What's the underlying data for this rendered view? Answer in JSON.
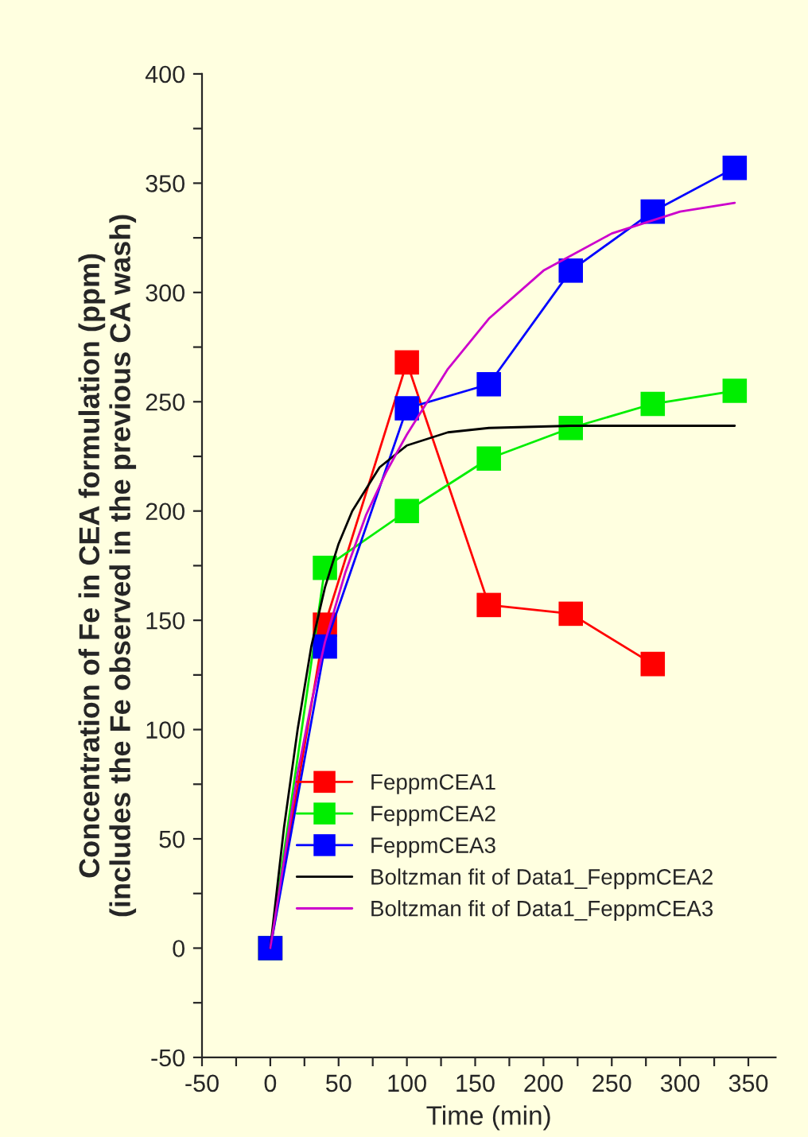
{
  "chart_data": {
    "type": "line",
    "xlabel": "Time (min)",
    "ylabel": "Concentration of Fe in CEA formulation (ppm)\n(includes the Fe observed in the previous CA wash)",
    "xlim": [
      -50,
      370
    ],
    "ylim": [
      -50,
      400
    ],
    "xticks": [
      -50,
      {
        "value": -25,
        "label": null
      },
      0,
      {
        "value": 25,
        "label": null
      },
      50,
      {
        "value": 75,
        "label": null
      },
      100,
      {
        "value": 125,
        "label": null
      },
      150,
      {
        "value": 175,
        "label": null
      },
      200,
      {
        "value": 225,
        "label": null
      },
      250,
      {
        "value": 275,
        "label": null
      },
      300,
      {
        "value": 325,
        "label": null
      },
      350
    ],
    "yticks": [
      -50,
      {
        "value": -25,
        "label": null
      },
      0,
      {
        "value": 25,
        "label": null
      },
      50,
      {
        "value": 75,
        "label": null
      },
      100,
      {
        "value": 125,
        "label": null
      },
      150,
      {
        "value": 175,
        "label": null
      },
      200,
      {
        "value": 225,
        "label": null
      },
      250,
      {
        "value": 275,
        "label": null
      },
      300,
      {
        "value": 325,
        "label": null
      },
      350,
      {
        "value": 375,
        "label": null
      },
      400
    ],
    "grid": false,
    "legend": "bottom",
    "series": [
      {
        "name": "FeppmCEA1",
        "color": "#ff0000",
        "marker": "square",
        "x": [
          0,
          40,
          100,
          160,
          220,
          280
        ],
        "values": [
          0,
          148,
          268,
          157,
          153,
          130
        ]
      },
      {
        "name": "FeppmCEA2",
        "color": "#00ee00",
        "marker": "square",
        "x": [
          0,
          40,
          100,
          160,
          220,
          280,
          340
        ],
        "values": [
          0,
          174,
          200,
          224,
          238,
          249,
          255
        ]
      },
      {
        "name": "FeppmCEA3",
        "color": "#0000ff",
        "marker": "square",
        "x": [
          0,
          40,
          100,
          160,
          220,
          280,
          340
        ],
        "values": [
          0,
          138,
          247,
          258,
          310,
          337,
          357
        ]
      },
      {
        "name": "Boltzman fit of Data1_FeppmCEA2",
        "color": "#000000",
        "marker": "none",
        "x": [
          0,
          10,
          20,
          30,
          40,
          50,
          60,
          80,
          100,
          130,
          160,
          220,
          280,
          340
        ],
        "values": [
          0,
          55,
          100,
          138,
          165,
          185,
          200,
          220,
          230,
          236,
          238,
          239,
          239,
          239
        ]
      },
      {
        "name": "Boltzman fit of Data1_FeppmCEA3",
        "color": "#cc00cc",
        "marker": "none",
        "x": [
          0,
          10,
          20,
          30,
          40,
          55,
          70,
          85,
          100,
          130,
          160,
          200,
          250,
          300,
          340
        ],
        "values": [
          0,
          40,
          80,
          112,
          140,
          172,
          198,
          218,
          235,
          265,
          288,
          310,
          327,
          337,
          341
        ]
      }
    ]
  }
}
